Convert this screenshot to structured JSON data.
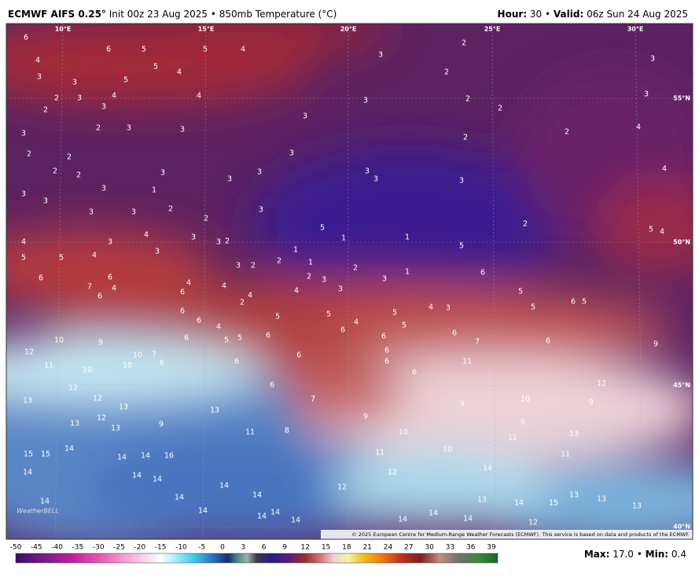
{
  "header": {
    "model": "ECMWF AIFS 0.25°",
    "init": "Init 00z 23 Aug 2025",
    "separator": "•",
    "field": "850mb Temperature (°C)",
    "hour_label": "Hour:",
    "hour": "30",
    "valid_label": "Valid:",
    "valid": "06z Sun 24 Aug 2025"
  },
  "map": {
    "longitude_labels": [
      "10°E",
      "15°E",
      "20°E",
      "25°E",
      "30°E"
    ],
    "latitude_labels": [
      "55°N",
      "50°N",
      "45°N",
      "40°N"
    ],
    "point_values": [
      6,
      4,
      3,
      6,
      5,
      5,
      4,
      3,
      2,
      3,
      2,
      4,
      5,
      5,
      3,
      2,
      3,
      4,
      4,
      3,
      2,
      2,
      3,
      2,
      3,
      3,
      3,
      2,
      3,
      3,
      2,
      2,
      4,
      2,
      2,
      3,
      4,
      2,
      2,
      3,
      3,
      3,
      3,
      3,
      3,
      3,
      1,
      3,
      3,
      3,
      3,
      2,
      3,
      2,
      2,
      5,
      5,
      4,
      4,
      4,
      3,
      3,
      3,
      2,
      1,
      1,
      5,
      5,
      5,
      4,
      3,
      3,
      2,
      2,
      1,
      1,
      2,
      1,
      6,
      6,
      6,
      7,
      6,
      4,
      4,
      4,
      4,
      2,
      2,
      3,
      3,
      4,
      3,
      4,
      3,
      5,
      6,
      5,
      5,
      6,
      6,
      6,
      4,
      5,
      5,
      4,
      5,
      5,
      6,
      7,
      6,
      9,
      10,
      9,
      10,
      7,
      6,
      5,
      5,
      6,
      6,
      6,
      6,
      6,
      6,
      6,
      11,
      12,
      11,
      10,
      10,
      6,
      6,
      6,
      7,
      9,
      9,
      10,
      9,
      12,
      12,
      12,
      13,
      12,
      13,
      11,
      8,
      10,
      9,
      11,
      13,
      13,
      13,
      13,
      9,
      10,
      11,
      11,
      14,
      14,
      14,
      14,
      16,
      15,
      15,
      14,
      14,
      14,
      14,
      12,
      12,
      13,
      13,
      13,
      13,
      14,
      15,
      14,
      14,
      14,
      14,
      14,
      14,
      14,
      14,
      14,
      14,
      12
    ],
    "credit": "© 2025 European Centre for Medium-Range Weather Forecasts (ECMWF). This service is based on data and products of the ECMWF.",
    "logo": "WeatherBELL"
  },
  "colorbar": {
    "ticks": [
      -50,
      -45,
      -40,
      -35,
      -30,
      -25,
      -20,
      -15,
      -10,
      -5,
      0,
      3,
      6,
      9,
      12,
      15,
      18,
      21,
      24,
      27,
      30,
      33,
      36,
      39
    ]
  },
  "stats": {
    "max_label": "Max:",
    "max": "17.0",
    "separator": "•",
    "min_label": "Min:",
    "min": "0.4"
  }
}
